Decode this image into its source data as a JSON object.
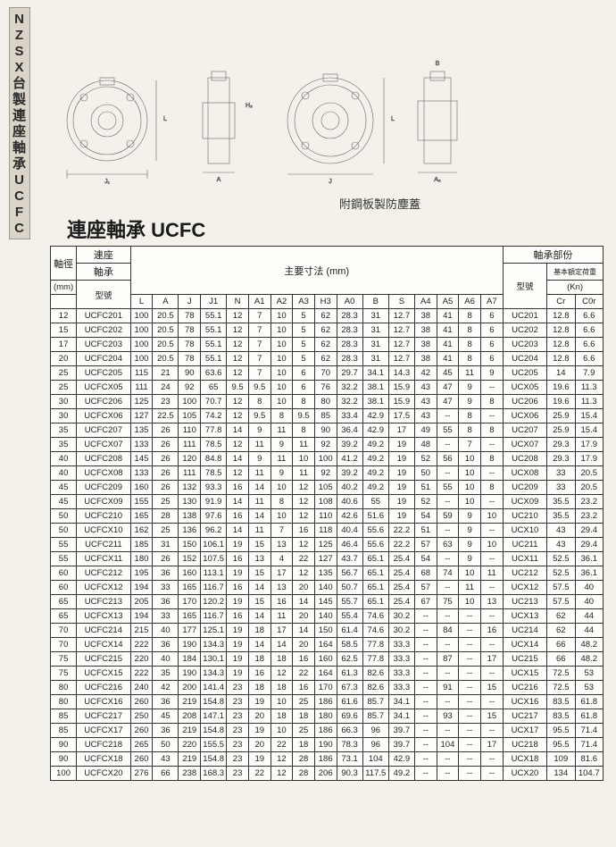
{
  "side_label_chars": [
    "N",
    "Z",
    "S",
    "X",
    "台",
    "製",
    "連",
    "座",
    "軸",
    "承",
    "U",
    "C",
    "F",
    "C"
  ],
  "diagram_caption": "附鋼板製防塵蓋",
  "page_title": "連座軸承 UCFC",
  "header": {
    "shaft_dia": "軸徑",
    "mm": "(mm)",
    "model_group": "連座",
    "model_group2": "軸承",
    "model_label": "型號",
    "main_dims": "主要寸法 (mm)",
    "bearing_part": "軸承部份",
    "load": "基本額定荷重",
    "kn": "(Kn)"
  },
  "columns_dims": [
    "L",
    "A",
    "J",
    "J1",
    "N",
    "A1",
    "A2",
    "A3",
    "H3",
    "A0",
    "B",
    "S",
    "A4",
    "A5",
    "A6",
    "A7"
  ],
  "columns_bearing": [
    "型號",
    "Cr",
    "C0r"
  ],
  "rows": [
    [
      "12",
      "UCFC201",
      "100",
      "20.5",
      "78",
      "55.1",
      "12",
      "7",
      "10",
      "5",
      "62",
      "28.3",
      "31",
      "12.7",
      "38",
      "41",
      "8",
      "6",
      "UC201",
      "12.8",
      "6.6"
    ],
    [
      "15",
      "UCFC202",
      "100",
      "20.5",
      "78",
      "55.1",
      "12",
      "7",
      "10",
      "5",
      "62",
      "28.3",
      "31",
      "12.7",
      "38",
      "41",
      "8",
      "6",
      "UC202",
      "12.8",
      "6.6"
    ],
    [
      "17",
      "UCFC203",
      "100",
      "20.5",
      "78",
      "55.1",
      "12",
      "7",
      "10",
      "5",
      "62",
      "28.3",
      "31",
      "12.7",
      "38",
      "41",
      "8",
      "6",
      "UC203",
      "12.8",
      "6.6"
    ],
    [
      "20",
      "UCFC204",
      "100",
      "20.5",
      "78",
      "55.1",
      "12",
      "7",
      "10",
      "5",
      "62",
      "28.3",
      "31",
      "12.7",
      "38",
      "41",
      "8",
      "6",
      "UC204",
      "12.8",
      "6.6"
    ],
    [
      "25",
      "UCFC205",
      "115",
      "21",
      "90",
      "63.6",
      "12",
      "7",
      "10",
      "6",
      "70",
      "29.7",
      "34.1",
      "14.3",
      "42",
      "45",
      "11",
      "9",
      "UC205",
      "14",
      "7.9"
    ],
    [
      "25",
      "UCFCX05",
      "111",
      "24",
      "92",
      "65",
      "9.5",
      "9.5",
      "10",
      "6",
      "76",
      "32.2",
      "38.1",
      "15.9",
      "43",
      "47",
      "9",
      "--",
      "UCX05",
      "19.6",
      "11.3"
    ],
    [
      "30",
      "UCFC206",
      "125",
      "23",
      "100",
      "70.7",
      "12",
      "8",
      "10",
      "8",
      "80",
      "32.2",
      "38.1",
      "15.9",
      "43",
      "47",
      "9",
      "8",
      "UC206",
      "19.6",
      "11.3"
    ],
    [
      "30",
      "UCFCX06",
      "127",
      "22.5",
      "105",
      "74.2",
      "12",
      "9.5",
      "8",
      "9.5",
      "85",
      "33.4",
      "42.9",
      "17.5",
      "43",
      "--",
      "8",
      "--",
      "UCX06",
      "25.9",
      "15.4"
    ],
    [
      "35",
      "UCFC207",
      "135",
      "26",
      "110",
      "77.8",
      "14",
      "9",
      "11",
      "8",
      "90",
      "36.4",
      "42.9",
      "17",
      "49",
      "55",
      "8",
      "8",
      "UC207",
      "25.9",
      "15.4"
    ],
    [
      "35",
      "UCFCX07",
      "133",
      "26",
      "111",
      "78.5",
      "12",
      "11",
      "9",
      "11",
      "92",
      "39.2",
      "49.2",
      "19",
      "48",
      "--",
      "7",
      "--",
      "UCX07",
      "29.3",
      "17.9"
    ],
    [
      "40",
      "UCFC208",
      "145",
      "26",
      "120",
      "84.8",
      "14",
      "9",
      "11",
      "10",
      "100",
      "41.2",
      "49.2",
      "19",
      "52",
      "56",
      "10",
      "8",
      "UC208",
      "29.3",
      "17.9"
    ],
    [
      "40",
      "UCFCX08",
      "133",
      "26",
      "111",
      "78.5",
      "12",
      "11",
      "9",
      "11",
      "92",
      "39.2",
      "49.2",
      "19",
      "50",
      "--",
      "10",
      "--",
      "UCX08",
      "33",
      "20.5"
    ],
    [
      "45",
      "UCFC209",
      "160",
      "26",
      "132",
      "93.3",
      "16",
      "14",
      "10",
      "12",
      "105",
      "40.2",
      "49.2",
      "19",
      "51",
      "55",
      "10",
      "8",
      "UC209",
      "33",
      "20.5"
    ],
    [
      "45",
      "UCFCX09",
      "155",
      "25",
      "130",
      "91.9",
      "14",
      "11",
      "8",
      "12",
      "108",
      "40.6",
      "55",
      "19",
      "52",
      "--",
      "10",
      "--",
      "UCX09",
      "35.5",
      "23.2"
    ],
    [
      "50",
      "UCFC210",
      "165",
      "28",
      "138",
      "97.6",
      "16",
      "14",
      "10",
      "12",
      "110",
      "42.6",
      "51.6",
      "19",
      "54",
      "59",
      "9",
      "10",
      "UC210",
      "35.5",
      "23.2"
    ],
    [
      "50",
      "UCFCX10",
      "162",
      "25",
      "136",
      "96.2",
      "14",
      "11",
      "7",
      "16",
      "118",
      "40.4",
      "55.6",
      "22.2",
      "51",
      "--",
      "9",
      "--",
      "UCX10",
      "43",
      "29.4"
    ],
    [
      "55",
      "UCFC211",
      "185",
      "31",
      "150",
      "106.1",
      "19",
      "15",
      "13",
      "12",
      "125",
      "46.4",
      "55.6",
      "22.2",
      "57",
      "63",
      "9",
      "10",
      "UC211",
      "43",
      "29.4"
    ],
    [
      "55",
      "UCFCX11",
      "180",
      "26",
      "152",
      "107.5",
      "16",
      "13",
      "4",
      "22",
      "127",
      "43.7",
      "65.1",
      "25.4",
      "54",
      "--",
      "9",
      "--",
      "UCX11",
      "52.5",
      "36.1"
    ],
    [
      "60",
      "UCFC212",
      "195",
      "36",
      "160",
      "113.1",
      "19",
      "15",
      "17",
      "12",
      "135",
      "56.7",
      "65.1",
      "25.4",
      "68",
      "74",
      "10",
      "11",
      "UC212",
      "52.5",
      "36.1"
    ],
    [
      "60",
      "UCFCX12",
      "194",
      "33",
      "165",
      "116.7",
      "16",
      "14",
      "13",
      "20",
      "140",
      "50.7",
      "65.1",
      "25.4",
      "57",
      "--",
      "11",
      "--",
      "UCX12",
      "57.5",
      "40"
    ],
    [
      "65",
      "UCFC213",
      "205",
      "36",
      "170",
      "120.2",
      "19",
      "15",
      "16",
      "14",
      "145",
      "55.7",
      "65.1",
      "25.4",
      "67",
      "75",
      "10",
      "13",
      "UC213",
      "57.5",
      "40"
    ],
    [
      "65",
      "UCFCX13",
      "194",
      "33",
      "165",
      "116.7",
      "16",
      "14",
      "11",
      "20",
      "140",
      "55.4",
      "74.6",
      "30.2",
      "--",
      "--",
      "--",
      "--",
      "UCX13",
      "62",
      "44"
    ],
    [
      "70",
      "UCFC214",
      "215",
      "40",
      "177",
      "125.1",
      "19",
      "18",
      "17",
      "14",
      "150",
      "61.4",
      "74.6",
      "30.2",
      "--",
      "84",
      "--",
      "16",
      "UC214",
      "62",
      "44"
    ],
    [
      "70",
      "UCFCX14",
      "222",
      "36",
      "190",
      "134.3",
      "19",
      "14",
      "14",
      "20",
      "164",
      "58.5",
      "77.8",
      "33.3",
      "--",
      "--",
      "--",
      "--",
      "UCX14",
      "66",
      "48.2"
    ],
    [
      "75",
      "UCFC215",
      "220",
      "40",
      "184",
      "130.1",
      "19",
      "18",
      "18",
      "16",
      "160",
      "62.5",
      "77.8",
      "33.3",
      "--",
      "87",
      "--",
      "17",
      "UC215",
      "66",
      "48.2"
    ],
    [
      "75",
      "UCFCX15",
      "222",
      "35",
      "190",
      "134.3",
      "19",
      "16",
      "12",
      "22",
      "164",
      "61.3",
      "82.6",
      "33.3",
      "--",
      "--",
      "--",
      "--",
      "UCX15",
      "72.5",
      "53"
    ],
    [
      "80",
      "UCFC216",
      "240",
      "42",
      "200",
      "141.4",
      "23",
      "18",
      "18",
      "16",
      "170",
      "67.3",
      "82.6",
      "33.3",
      "--",
      "91",
      "--",
      "15",
      "UC216",
      "72.5",
      "53"
    ],
    [
      "80",
      "UCFCX16",
      "260",
      "36",
      "219",
      "154.8",
      "23",
      "19",
      "10",
      "25",
      "186",
      "61.6",
      "85.7",
      "34.1",
      "--",
      "--",
      "--",
      "--",
      "UCX16",
      "83.5",
      "61.8"
    ],
    [
      "85",
      "UCFC217",
      "250",
      "45",
      "208",
      "147.1",
      "23",
      "20",
      "18",
      "18",
      "180",
      "69.6",
      "85.7",
      "34.1",
      "--",
      "93",
      "--",
      "15",
      "UC217",
      "83.5",
      "61.8"
    ],
    [
      "85",
      "UCFCX17",
      "260",
      "36",
      "219",
      "154.8",
      "23",
      "19",
      "10",
      "25",
      "186",
      "66.3",
      "96",
      "39.7",
      "--",
      "--",
      "--",
      "--",
      "UCX17",
      "95.5",
      "71.4"
    ],
    [
      "90",
      "UCFC218",
      "265",
      "50",
      "220",
      "155.5",
      "23",
      "20",
      "22",
      "18",
      "190",
      "78.3",
      "96",
      "39.7",
      "--",
      "104",
      "--",
      "17",
      "UC218",
      "95.5",
      "71.4"
    ],
    [
      "90",
      "UCFCX18",
      "260",
      "43",
      "219",
      "154.8",
      "23",
      "19",
      "12",
      "28",
      "186",
      "73.1",
      "104",
      "42.9",
      "--",
      "--",
      "--",
      "--",
      "UCX18",
      "109",
      "81.6"
    ],
    [
      "100",
      "UCFCX20",
      "276",
      "66",
      "238",
      "168.3",
      "23",
      "22",
      "12",
      "28",
      "206",
      "90.3",
      "117.5",
      "49.2",
      "--",
      "--",
      "--",
      "--",
      "UCX20",
      "134",
      "104.7"
    ]
  ]
}
